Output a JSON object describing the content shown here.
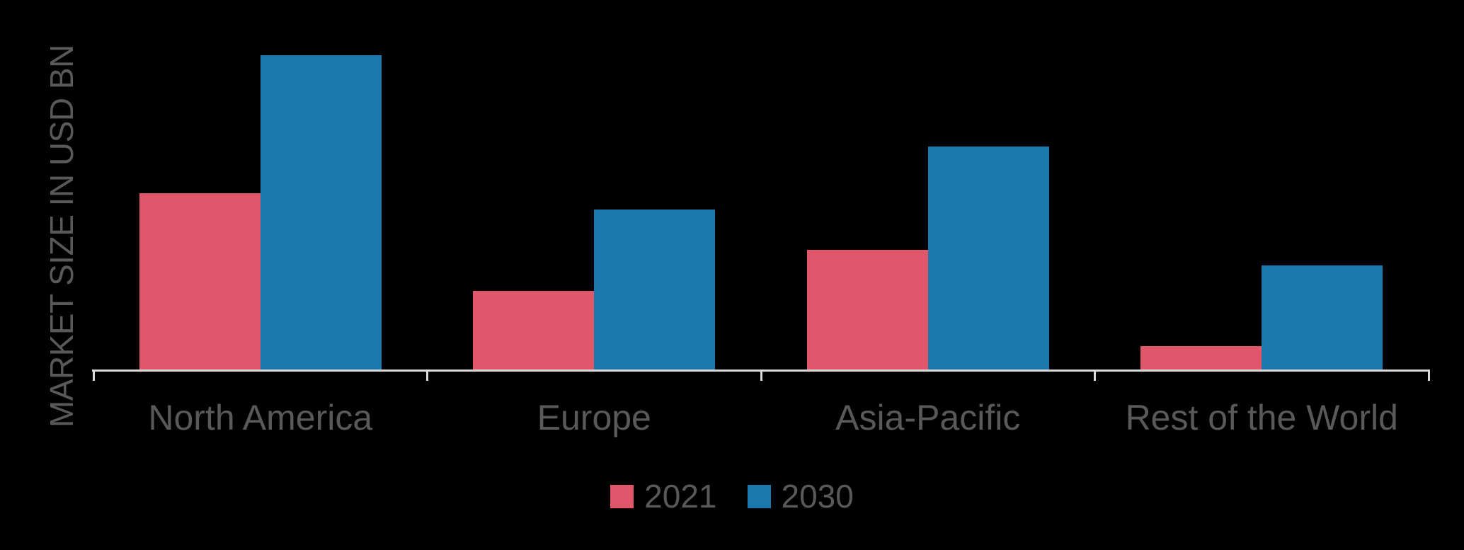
{
  "chart_data": {
    "type": "bar",
    "title": "",
    "xlabel": "",
    "ylabel": "MARKET SIZE IN USD BN",
    "categories": [
      "North America",
      "Europe",
      "Asia-Pacific",
      "Rest of the World"
    ],
    "series": [
      {
        "name": "2021",
        "color": "#e0566a",
        "values": [
          56,
          25,
          38,
          7.5
        ]
      },
      {
        "name": "2030",
        "color": "#1c77ad",
        "values": [
          100,
          51,
          71,
          33
        ]
      }
    ],
    "value_axis": {
      "tick_labels_visible": false,
      "max_relative": 100,
      "note": "no numeric axis labels shown in chart; values are relative estimates with tallest bar (North America 2030) = 100"
    },
    "legend_position": "bottom",
    "grid": false
  },
  "style": {
    "background_color": "#000000",
    "text_color": "#595959",
    "axis_color": "#d9d9d9"
  }
}
